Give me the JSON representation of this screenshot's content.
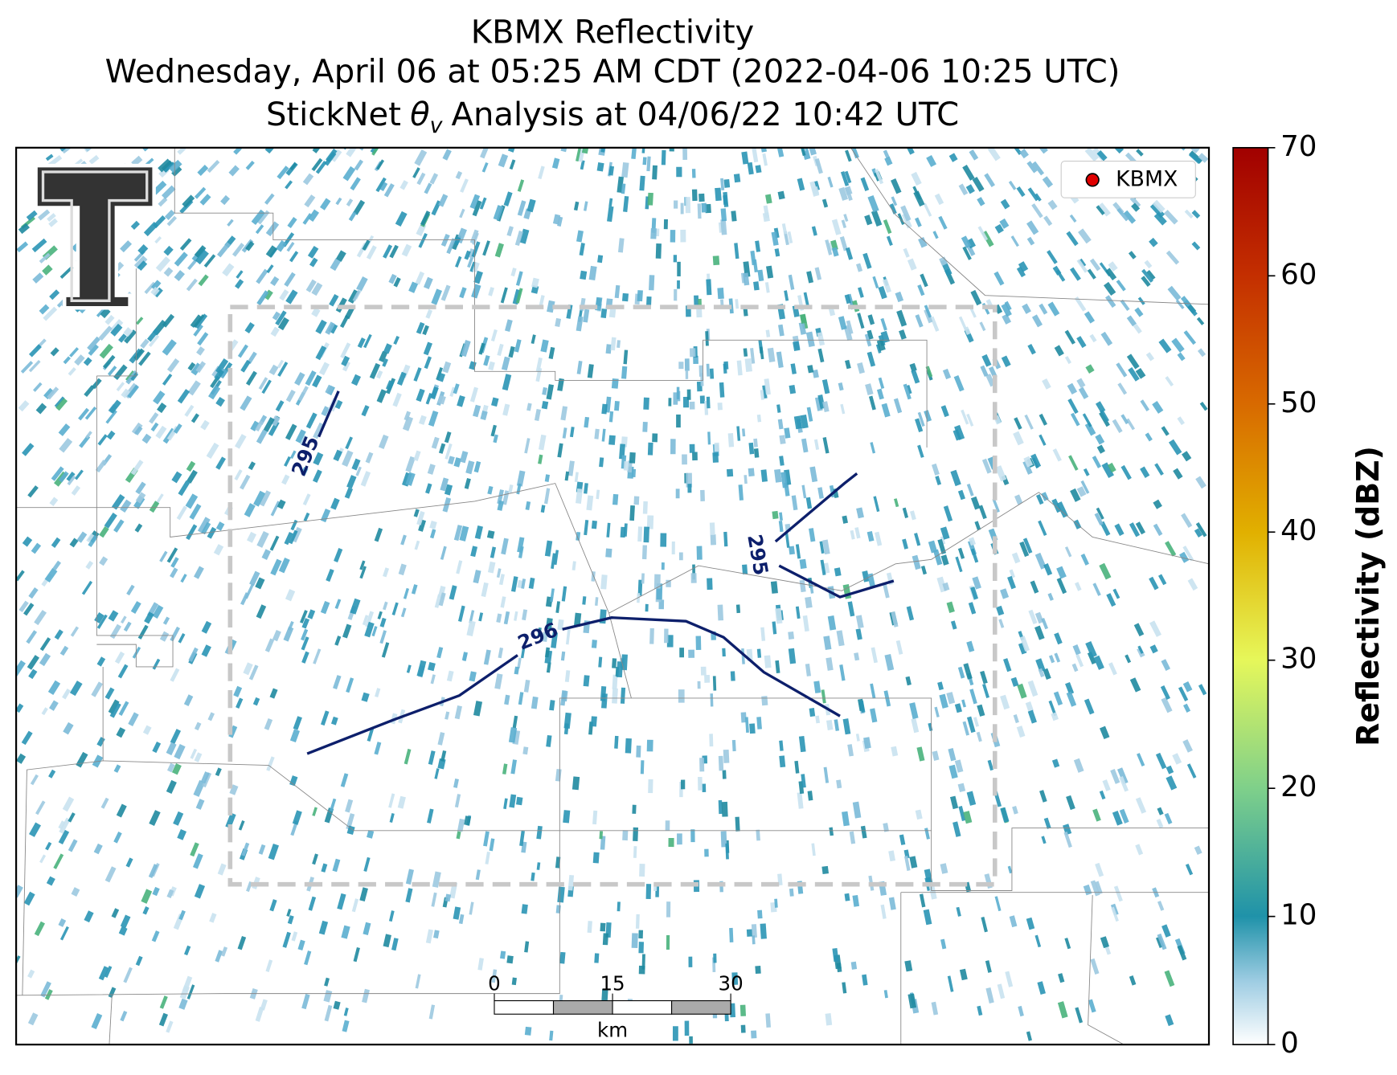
{
  "title_lines": [
    "KBMX Reflectivity",
    "Wednesday, April 06 at 05:25 AM CDT (2022-04-06 10:25 UTC)"
  ],
  "analysis_title": {
    "prefix": "StickNet",
    "symbol": "θ",
    "subscript": "v",
    "suffix": "Analysis at 04/06/22 10:42 UTC"
  },
  "legend": {
    "label": "KBMX"
  },
  "contours": [
    {
      "label": "295"
    },
    {
      "label": "296"
    },
    {
      "label": "295"
    }
  ],
  "colorbar": {
    "label": "Reflectivity (dBZ)",
    "lim": [
      0,
      70
    ],
    "ticks": [
      0,
      10,
      20,
      30,
      40,
      50,
      60,
      70
    ]
  },
  "scalebar": {
    "unit": "km",
    "lim": [
      0,
      30
    ],
    "ticks": [
      0,
      15,
      30
    ]
  }
}
